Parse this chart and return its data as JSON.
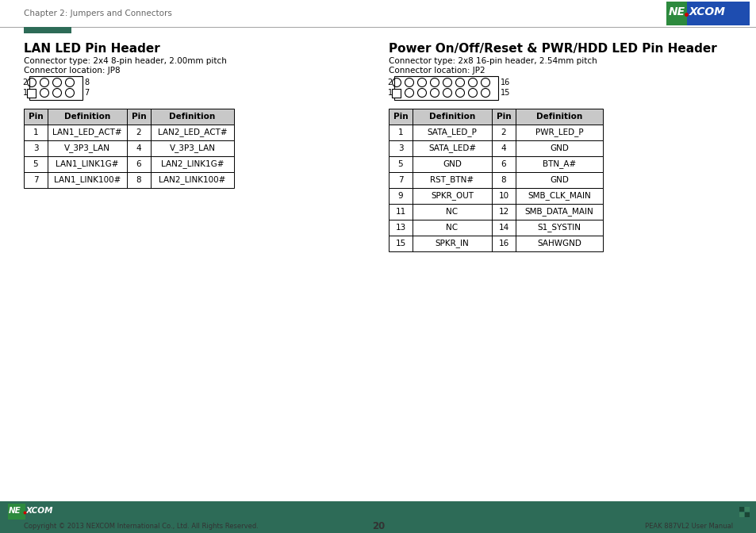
{
  "page_title": "Chapter 2: Jumpers and Connectors",
  "page_number": "20",
  "footer_left": "Copyright © 2013 NEXCOM International Co., Ltd. All Rights Reserved.",
  "footer_right": "PEAK 887VL2 User Manual",
  "footer_bg": "#2d6b57",
  "section1_title": "LAN LED Pin Header",
  "section1_sub1": "Connector type: 2x4 8-pin header, 2.00mm pitch",
  "section1_sub2": "Connector location: JP8",
  "section1_pin_rows": [
    [
      "Pin",
      "Definition",
      "Pin",
      "Definition"
    ],
    [
      "1",
      "LAN1_LED_ACT#",
      "2",
      "LAN2_LED_ACT#"
    ],
    [
      "3",
      "V_3P3_LAN",
      "4",
      "V_3P3_LAN"
    ],
    [
      "5",
      "LAN1_LINK1G#",
      "6",
      "LAN2_LINK1G#"
    ],
    [
      "7",
      "LAN1_LINK100#",
      "8",
      "LAN2_LINK100#"
    ]
  ],
  "section2_title": "Power On/Off/Reset & PWR/HDD LED Pin Header",
  "section2_sub1": "Connector type: 2x8 16-pin header, 2.54mm pitch",
  "section2_sub2": "Connector location: JP2",
  "section2_pin_rows": [
    [
      "Pin",
      "Definition",
      "Pin",
      "Definition"
    ],
    [
      "1",
      "SATA_LED_P",
      "2",
      "PWR_LED_P"
    ],
    [
      "3",
      "SATA_LED#",
      "4",
      "GND"
    ],
    [
      "5",
      "GND",
      "6",
      "BTN_A#"
    ],
    [
      "7",
      "RST_BTN#",
      "8",
      "GND"
    ],
    [
      "9",
      "SPKR_OUT",
      "10",
      "SMB_CLK_MAIN"
    ],
    [
      "11",
      "NC",
      "12",
      "SMB_DATA_MAIN"
    ],
    [
      "13",
      "NC",
      "14",
      "S1_SYSTIN"
    ],
    [
      "15",
      "SPKR_IN",
      "16",
      "SAHWGND"
    ]
  ],
  "header_color": "#2d6b57",
  "table_header_bg": "#c8c8c8",
  "table_border": "#000000",
  "bg_color": "#ffffff",
  "text_color": "#000000",
  "gray_text": "#555555",
  "accent_red": "#cc0000",
  "nexcom_green": "#2d8a3e",
  "nexcom_blue": "#1e4db0",
  "line_color": "#aaaaaa"
}
